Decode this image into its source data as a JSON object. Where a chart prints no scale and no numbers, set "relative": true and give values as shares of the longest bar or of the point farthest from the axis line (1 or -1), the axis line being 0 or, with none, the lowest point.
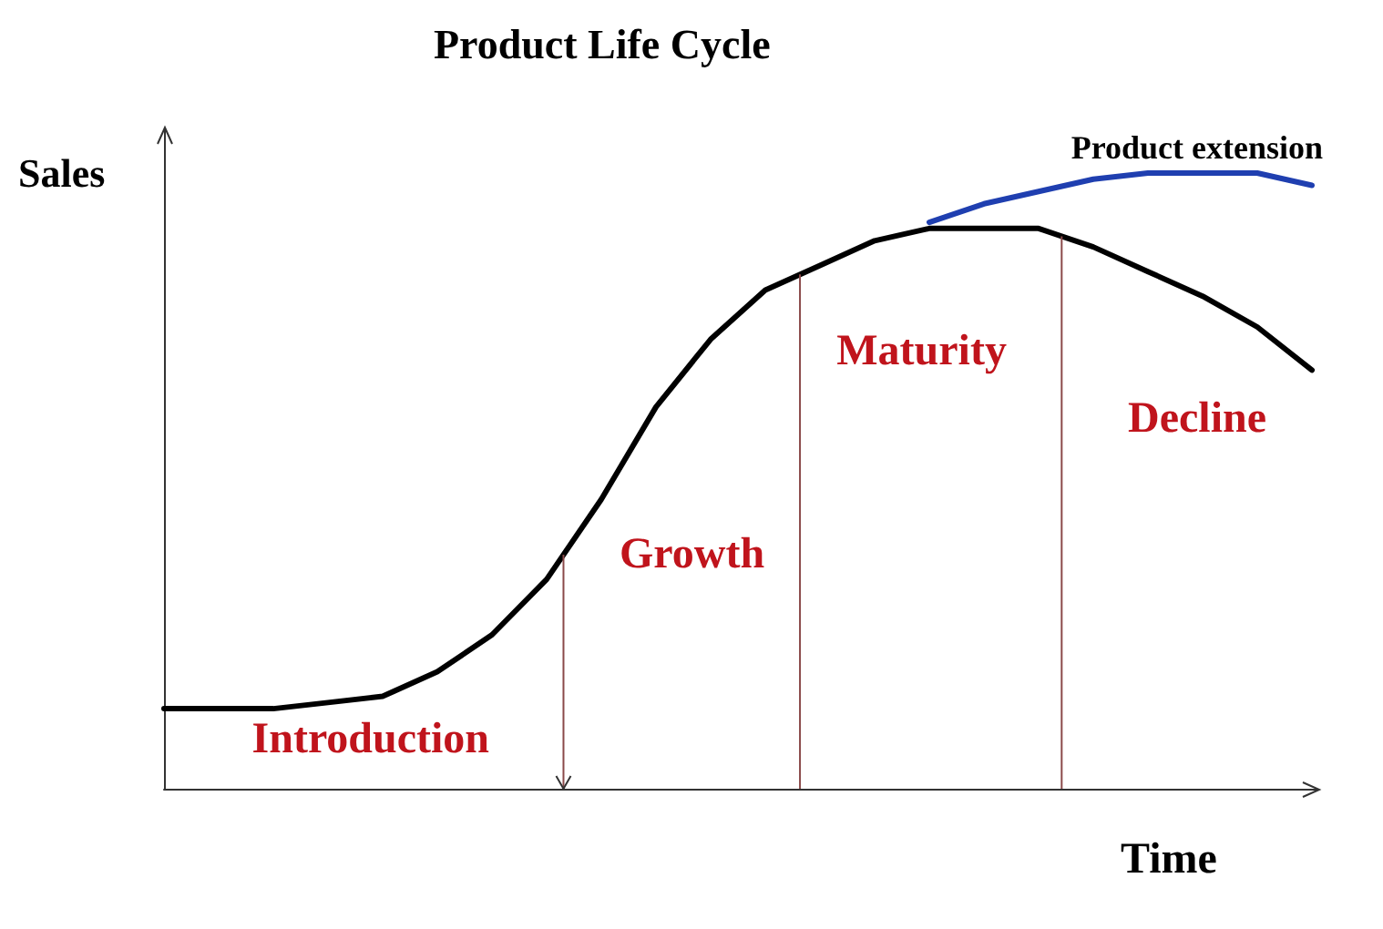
{
  "chart_data": {
    "type": "line",
    "title": "Product Life Cycle",
    "xlabel": "Time",
    "ylabel": "Sales",
    "relative": true,
    "grid": false,
    "legend": false,
    "marker": "none",
    "line_style": "solid",
    "categories": [
      null,
      null,
      null,
      null,
      null,
      null,
      null,
      null,
      null,
      null,
      null,
      null,
      null,
      null,
      null,
      null,
      null,
      null,
      null,
      null,
      null,
      null
    ],
    "series": [
      {
        "color": "#000000",
        "values": [
          0.13,
          0.13,
          0.13,
          0.14,
          0.15,
          0.19,
          0.25,
          0.34,
          0.47,
          0.62,
          0.73,
          0.81,
          0.85,
          0.89,
          0.91,
          0.91,
          0.91,
          0.88,
          0.84,
          0.8,
          0.75,
          0.68
        ]
      },
      {
        "name": "Product extension",
        "color": "#1f3fb0",
        "values": [
          null,
          null,
          null,
          null,
          null,
          null,
          null,
          null,
          null,
          null,
          null,
          null,
          null,
          null,
          0.92,
          0.95,
          0.97,
          0.99,
          1.0,
          1.0,
          1.0,
          0.98
        ]
      }
    ],
    "annotations": [
      "Introduction",
      "Growth",
      "Maturity",
      "Decline"
    ]
  }
}
